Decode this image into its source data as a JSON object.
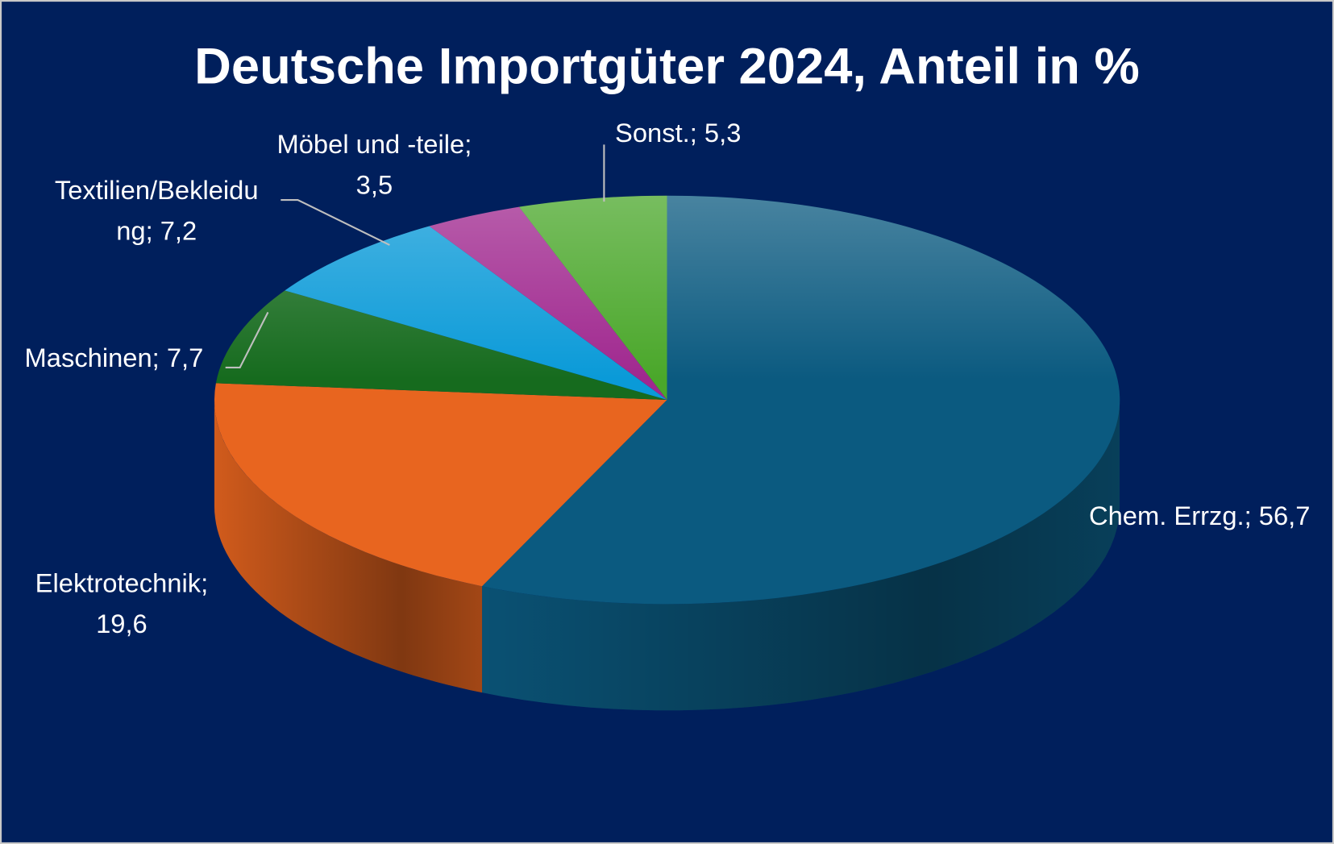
{
  "chart_data": {
    "type": "pie",
    "title": "Deutsche Importgüter 2024, Anteil in %",
    "slices": [
      {
        "label": "Chem. Errzg.",
        "value": 56.7,
        "text_lines": [
          "Chem. Errzg.; 56,7"
        ],
        "color": "#0b5a80"
      },
      {
        "label": "Elektrotechnik",
        "value": 19.6,
        "text_lines": [
          "Elektrotechnik;",
          "19,6"
        ],
        "color": "#e8651f"
      },
      {
        "label": "Maschinen",
        "value": 7.7,
        "text_lines": [
          "Maschinen; 7,7"
        ],
        "color": "#166b1e"
      },
      {
        "label": "Textilien/Bekleidung",
        "value": 7.2,
        "text_lines": [
          "Textilien/Bekleidu",
          "ng; 7,2"
        ],
        "color": "#0a9ad8"
      },
      {
        "label": "Möbel und -teile",
        "value": 3.5,
        "text_lines": [
          "Möbel und -teile;",
          "3,5"
        ],
        "color": "#a0288f"
      },
      {
        "label": "Sonst.",
        "value": 5.3,
        "text_lines": [
          "Sonst.; 5,3"
        ],
        "color": "#4aa72a"
      }
    ],
    "style": "3d-pie",
    "background": "#001f5c"
  }
}
